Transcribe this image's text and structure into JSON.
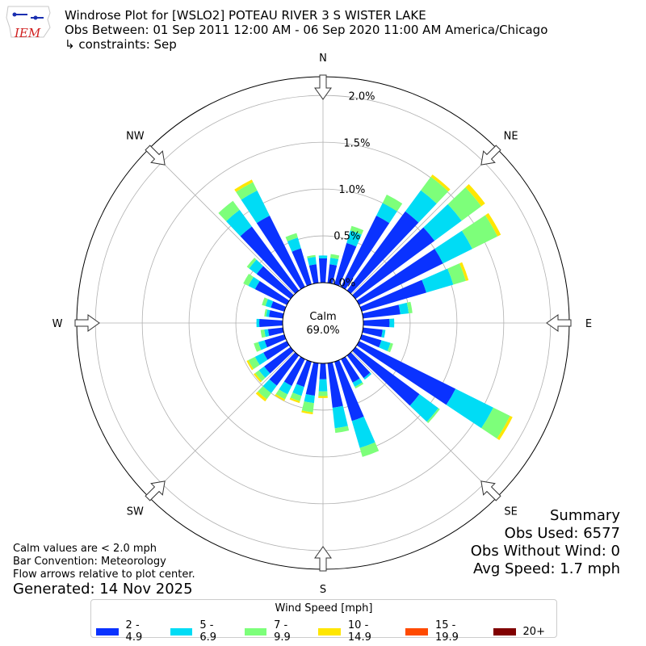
{
  "header": {
    "title_line1": "Windrose Plot for [WSLO2] POTEAU RIVER 3 S WISTER LAKE",
    "title_line2": "Obs Between: 01 Sep 2011 12:00 AM - 06 Sep 2020 11:00 AM America/Chicago",
    "title_line3": "↳ constraints: Sep",
    "logo_text": "IEM"
  },
  "summary": {
    "heading": "Summary",
    "obs_used": "Obs Used: 6577",
    "obs_without_wind": "Obs Without Wind: 0",
    "avg_speed": "Avg Speed: 1.7 mph"
  },
  "notes": {
    "calm": "Calm values are < 2.0 mph",
    "convention": "Bar Convention: Meteorology",
    "flow": "Flow arrows relative to plot center.",
    "generated": "Generated: 14 Nov 2025"
  },
  "legend": {
    "title": "Wind Speed [mph]",
    "items": [
      {
        "label": "2 - 4.9",
        "color": "#0a32ff"
      },
      {
        "label": "5 - 6.9",
        "color": "#00dcf5"
      },
      {
        "label": "7 - 9.9",
        "color": "#7dff7a"
      },
      {
        "label": "10 - 14.9",
        "color": "#ffe600"
      },
      {
        "label": "15 - 19.9",
        "color": "#ff4a00"
      },
      {
        "label": "20+",
        "color": "#800000"
      }
    ]
  },
  "chart_data": {
    "type": "windrose",
    "calm_label": "Calm",
    "calm_percent": "69.0%",
    "radial_ticks": [
      "0.0%",
      "0.5%",
      "1.0%",
      "1.5%",
      "2.0%"
    ],
    "radial_tick_values": [
      0,
      0.5,
      1.0,
      1.5,
      2.0
    ],
    "rlim": [
      0,
      2.2
    ],
    "compass_labels": [
      "N",
      "NE",
      "E",
      "SE",
      "S",
      "SW",
      "W",
      "NW"
    ],
    "direction_step_deg": 10,
    "speed_bins": [
      "2 - 4.9",
      "5 - 6.9",
      "7 - 9.9",
      "10 - 14.9",
      "15 - 19.9",
      "20+"
    ],
    "directions": [
      {
        "dir": 0,
        "values": [
          0.26,
          0.03,
          0,
          0,
          0,
          0
        ]
      },
      {
        "dir": 10,
        "values": [
          0.2,
          0.07,
          0.04,
          0,
          0,
          0
        ]
      },
      {
        "dir": 20,
        "values": [
          0.46,
          0.14,
          0.05,
          0,
          0,
          0
        ]
      },
      {
        "dir": 30,
        "values": [
          0.85,
          0.15,
          0.1,
          0,
          0,
          0
        ]
      },
      {
        "dir": 40,
        "values": [
          1.05,
          0.28,
          0.18,
          0.03,
          0,
          0
        ]
      },
      {
        "dir": 50,
        "values": [
          1.05,
          0.36,
          0.26,
          0.05,
          0,
          0
        ]
      },
      {
        "dir": 60,
        "values": [
          1.0,
          0.35,
          0.3,
          0.04,
          0,
          0
        ]
      },
      {
        "dir": 70,
        "values": [
          0.72,
          0.3,
          0.14,
          0.03,
          0,
          0
        ]
      },
      {
        "dir": 80,
        "values": [
          0.4,
          0.09,
          0.04,
          0,
          0,
          0
        ]
      },
      {
        "dir": 90,
        "values": [
          0.28,
          0.05,
          0,
          0,
          0,
          0
        ]
      },
      {
        "dir": 100,
        "values": [
          0.21,
          0.03,
          0,
          0,
          0,
          0
        ]
      },
      {
        "dir": 110,
        "values": [
          0.22,
          0.1,
          0.03,
          0,
          0,
          0
        ]
      },
      {
        "dir": 120,
        "values": [
          1.15,
          0.45,
          0.2,
          0.03,
          0,
          0
        ]
      },
      {
        "dir": 130,
        "values": [
          0.85,
          0.25,
          0.02,
          0,
          0,
          0
        ]
      },
      {
        "dir": 140,
        "values": [
          0.3,
          0.02,
          0,
          0,
          0,
          0
        ]
      },
      {
        "dir": 150,
        "values": [
          0.28,
          0.05,
          0.02,
          0,
          0,
          0
        ]
      },
      {
        "dir": 160,
        "values": [
          0.66,
          0.3,
          0.1,
          0,
          0,
          0
        ]
      },
      {
        "dir": 170,
        "values": [
          0.48,
          0.22,
          0.05,
          0,
          0,
          0
        ]
      },
      {
        "dir": 180,
        "values": [
          0.17,
          0.13,
          0.05,
          0.02,
          0,
          0
        ]
      },
      {
        "dir": 190,
        "values": [
          0.35,
          0.08,
          0.1,
          0.02,
          0,
          0
        ]
      },
      {
        "dir": 200,
        "values": [
          0.28,
          0.1,
          0.06,
          0.02,
          0,
          0
        ]
      },
      {
        "dir": 210,
        "values": [
          0.32,
          0.1,
          0.06,
          0.02,
          0,
          0
        ]
      },
      {
        "dir": 220,
        "values": [
          0.4,
          0.1,
          0.08,
          0.03,
          0,
          0
        ]
      },
      {
        "dir": 230,
        "values": [
          0.35,
          0.07,
          0.05,
          0.02,
          0,
          0
        ]
      },
      {
        "dir": 240,
        "values": [
          0.28,
          0.1,
          0.08,
          0.02,
          0,
          0
        ]
      },
      {
        "dir": 250,
        "values": [
          0.22,
          0.07,
          0.05,
          0,
          0,
          0
        ]
      },
      {
        "dir": 260,
        "values": [
          0.16,
          0.04,
          0.04,
          0,
          0,
          0
        ]
      },
      {
        "dir": 270,
        "values": [
          0.25,
          0.03,
          0,
          0,
          0,
          0
        ]
      },
      {
        "dir": 280,
        "values": [
          0.15,
          0.03,
          0.02,
          0,
          0,
          0
        ]
      },
      {
        "dir": 290,
        "values": [
          0.15,
          0.06,
          0.04,
          0,
          0,
          0
        ]
      },
      {
        "dir": 300,
        "values": [
          0.38,
          0.08,
          0.06,
          0,
          0,
          0
        ]
      },
      {
        "dir": 310,
        "values": [
          0.45,
          0.1,
          0.03,
          0,
          0,
          0
        ]
      },
      {
        "dir": 320,
        "values": [
          0.85,
          0.22,
          0.12,
          0,
          0,
          0
        ]
      },
      {
        "dir": 330,
        "values": [
          0.85,
          0.3,
          0.1,
          0.03,
          0,
          0
        ]
      },
      {
        "dir": 340,
        "values": [
          0.4,
          0.12,
          0.05,
          0,
          0,
          0
        ]
      },
      {
        "dir": 350,
        "values": [
          0.2,
          0.08,
          0.02,
          0,
          0,
          0
        ]
      }
    ]
  }
}
